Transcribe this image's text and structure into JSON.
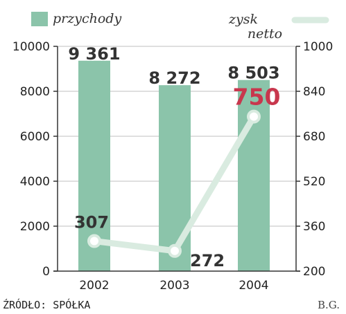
{
  "chart_data": {
    "type": "bar",
    "categories": [
      "2002",
      "2003",
      "2004"
    ],
    "series": [
      {
        "name": "przychody",
        "kind": "bar",
        "axis": "left",
        "values": [
          9361,
          8272,
          8503
        ],
        "labels": [
          "9 361",
          "8 272",
          "8 503"
        ]
      },
      {
        "name": "zysk netto",
        "kind": "line",
        "axis": "right",
        "values": [
          307,
          272,
          750
        ],
        "labels": [
          "307",
          "272",
          "750"
        ]
      }
    ],
    "left_axis": {
      "ylim": [
        0,
        10000
      ],
      "ticks": [
        "0",
        "2000",
        "4000",
        "6000",
        "8000",
        "10000"
      ]
    },
    "right_axis": {
      "ylim": [
        200,
        1000
      ],
      "ticks": [
        "200",
        "360",
        "520",
        "680",
        "840",
        "1000"
      ]
    },
    "legend": {
      "bar_label": "przychody",
      "line_label_1": "zysk",
      "line_label_2": "netto"
    },
    "grid": true,
    "colors": {
      "bar": "#8bc4aa",
      "line": "#d9ebe0",
      "highlight": "#c8374d",
      "grid": "#cccccc"
    },
    "source": "ŹRÓDŁO: SPÓŁKA",
    "credit": "B.G."
  }
}
